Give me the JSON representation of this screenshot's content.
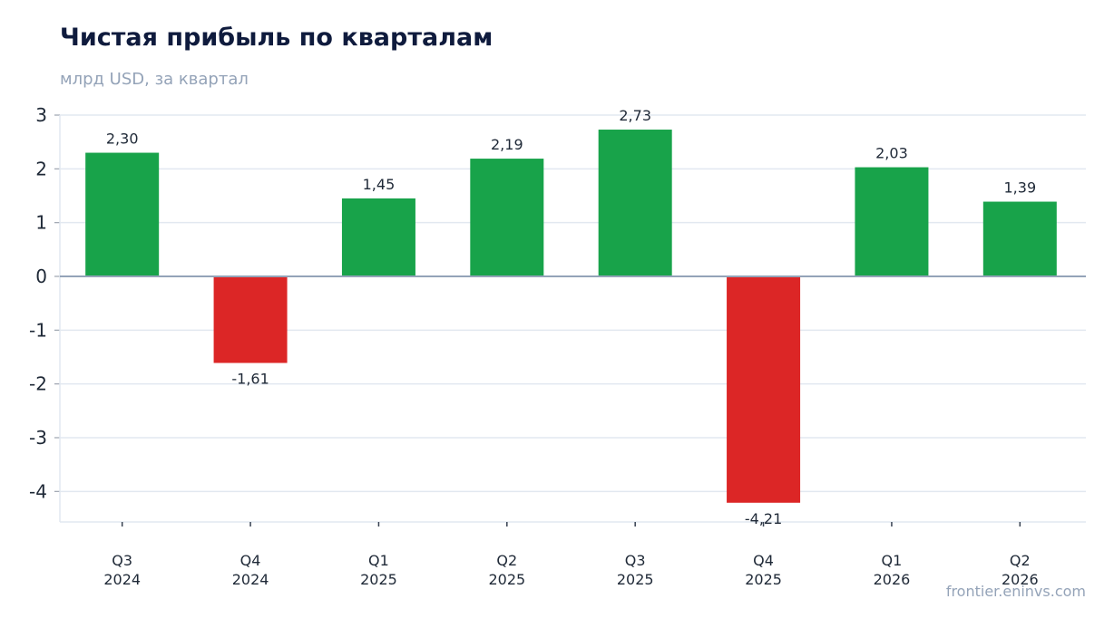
{
  "header": {
    "title": "Чистая прибыль по кварталам",
    "subtitle": "млрд USD, за квартал"
  },
  "footer": {
    "source": "frontier.eninvs.com"
  },
  "colors": {
    "positive": "#18a34a",
    "negative": "#dc2626",
    "grid": "#e2e8f0",
    "zero_line": "#94a3b8"
  },
  "chart_data": {
    "type": "bar",
    "title": "Чистая прибыль по кварталам",
    "subtitle": "млрд USD, за квартал",
    "categories": [
      [
        "Q3",
        "2024"
      ],
      [
        "Q4",
        "2024"
      ],
      [
        "Q1",
        "2025"
      ],
      [
        "Q2",
        "2025"
      ],
      [
        "Q3",
        "2025"
      ],
      [
        "Q4",
        "2025"
      ],
      [
        "Q1",
        "2026"
      ],
      [
        "Q2",
        "2026"
      ]
    ],
    "values": [
      2.3,
      -1.61,
      1.45,
      2.19,
      2.73,
      -4.21,
      2.03,
      1.39
    ],
    "data_labels": [
      "2,30",
      "-1,61",
      "1,45",
      "2,19",
      "2,73",
      "-4,21",
      "2,03",
      "1,39"
    ],
    "yticks": [
      3,
      2,
      1,
      0,
      -1,
      -2,
      -3,
      -4
    ],
    "ytick_labels": [
      "3",
      "2",
      "1",
      "0",
      "-1",
      "-2",
      "-3",
      "-4"
    ],
    "ylim": [
      -4.55,
      3.0
    ],
    "xlabel": "",
    "ylabel": "",
    "grid": true,
    "legend": "none"
  }
}
